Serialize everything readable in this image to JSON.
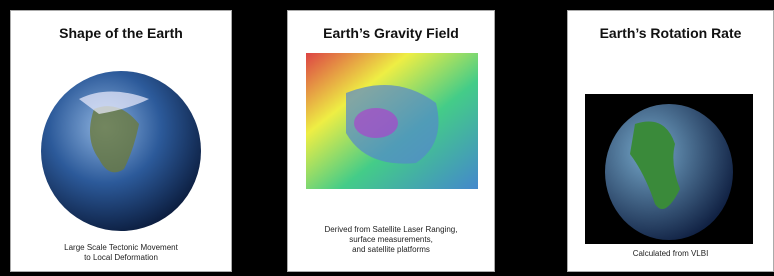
{
  "panels": [
    {
      "title": "Shape of the Earth",
      "caption": [
        "Large Scale Tectonic Movement",
        "to Local Deformation"
      ]
    },
    {
      "title": "Earth’s Gravity Field",
      "caption": [
        "Derived from Satellite Laser Ranging,",
        "surface measurements,",
        "and satellite platforms"
      ]
    },
    {
      "title": "Earth’s Rotation Rate",
      "caption": [
        "Calculated from VLBI"
      ]
    }
  ]
}
